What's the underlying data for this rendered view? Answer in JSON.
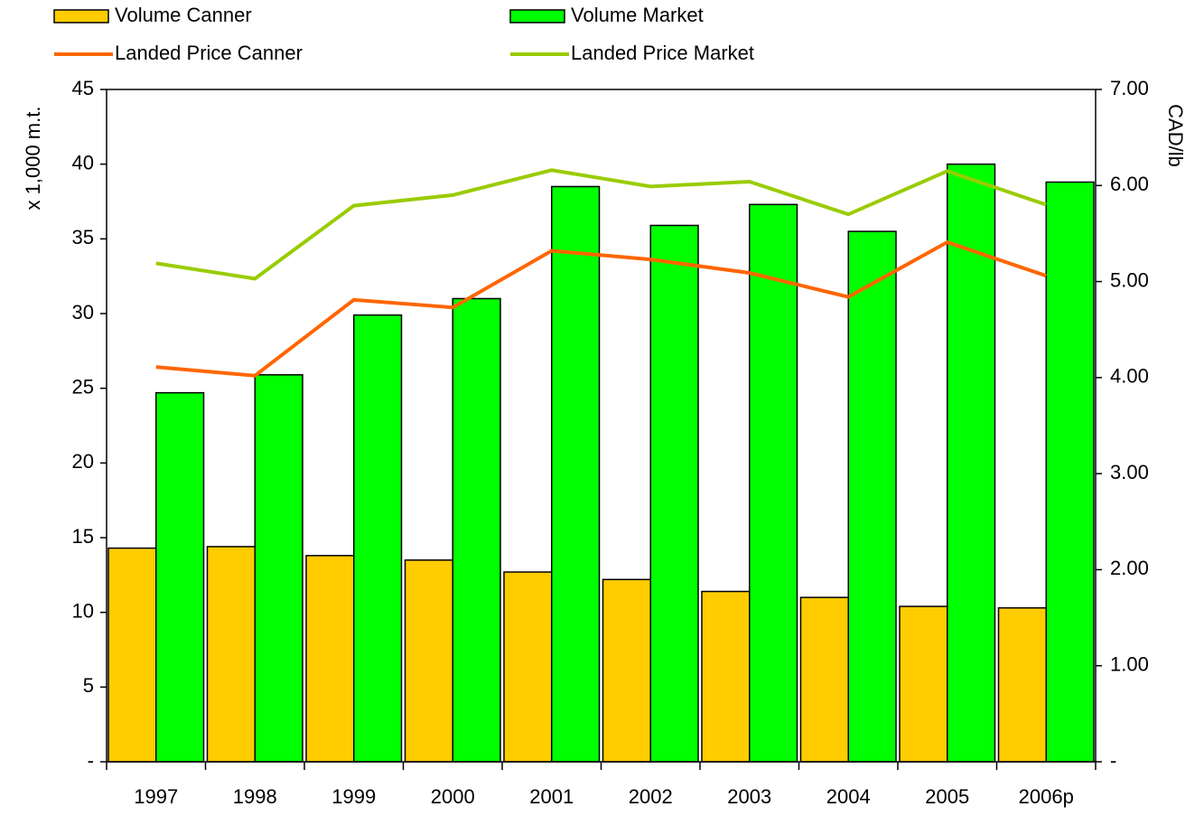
{
  "chart_data": {
    "type": "bar",
    "categories": [
      "1997",
      "1998",
      "1999",
      "2000",
      "2001",
      "2002",
      "2003",
      "2004",
      "2005",
      "2006p"
    ],
    "series": [
      {
        "name": "Volume Canner",
        "color": "#ffcc00",
        "type": "bar",
        "values": [
          14.3,
          14.4,
          13.8,
          13.5,
          12.7,
          12.2,
          11.4,
          11.0,
          10.4,
          10.3
        ]
      },
      {
        "name": "Volume Market",
        "color": "#00ff00",
        "type": "bar",
        "values": [
          24.7,
          25.9,
          29.9,
          31.0,
          38.5,
          35.9,
          37.3,
          35.5,
          40.0,
          38.8
        ]
      },
      {
        "name": "Landed Price Canner",
        "color": "#ff6600",
        "type": "line",
        "axis": "y2",
        "values": [
          4.11,
          4.02,
          4.81,
          4.73,
          5.32,
          5.23,
          5.09,
          4.84,
          5.41,
          5.06
        ]
      },
      {
        "name": "Landed Price Market",
        "color": "#99cc00",
        "type": "line",
        "axis": "y2",
        "values": [
          5.19,
          5.03,
          5.79,
          5.9,
          6.16,
          5.99,
          6.04,
          5.7,
          6.15,
          5.8
        ]
      }
    ],
    "ylabel": "x 1,000 m.t.",
    "y2label": "CAD/lb",
    "ylim": [
      0,
      45
    ],
    "yticks": [
      {
        "value": 0,
        "label": "-"
      },
      5,
      10,
      15,
      20,
      25,
      30,
      35,
      40,
      45
    ],
    "y2lim": [
      0,
      7
    ],
    "y2ticks": [
      {
        "value": 0,
        "label": "-"
      },
      {
        "value": 1,
        "label": "1.00"
      },
      {
        "value": 2,
        "label": "2.00"
      },
      {
        "value": 3,
        "label": "3.00"
      },
      {
        "value": 4,
        "label": "4.00"
      },
      {
        "value": 5,
        "label": "5.00"
      },
      {
        "value": 6,
        "label": "6.00"
      },
      {
        "value": 7,
        "label": "7.00"
      }
    ]
  }
}
